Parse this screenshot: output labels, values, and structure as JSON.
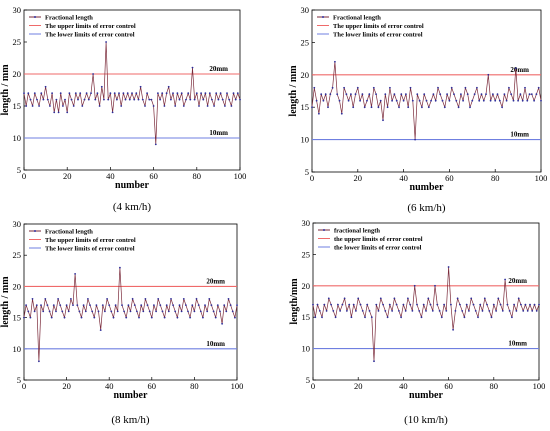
{
  "colors": {
    "series": "#7a2a3a",
    "marker": "#2f2f9a",
    "upper": "#ef6a6a",
    "lower": "#6f7fe0"
  },
  "chart_data": [
    {
      "type": "line",
      "caption": "(4 km/h)",
      "xlabel": "number",
      "ylabel": "length / mm",
      "xlim": [
        0,
        100
      ],
      "ylim": [
        5,
        30
      ],
      "xticks": [
        "0",
        "20",
        "40",
        "60",
        "80",
        "100"
      ],
      "yticks": [
        "5",
        "10",
        "15",
        "20",
        "25",
        "30"
      ],
      "legend": [
        "Fractional length",
        "The upper limits of error control",
        "The lower limits of error control"
      ],
      "upper": 20,
      "lower": 10,
      "upper_label": "20mm",
      "lower_label": "10mm",
      "series": [
        {
          "name": "Fractional length",
          "values": [
            17,
            15,
            17,
            16,
            15,
            17,
            16,
            15,
            17,
            16,
            18,
            16,
            15,
            17,
            14,
            16,
            14,
            17,
            15,
            16,
            14,
            17,
            16,
            15,
            17,
            16,
            17,
            15,
            16,
            17,
            16,
            17,
            20,
            16,
            17,
            15,
            18,
            16,
            25,
            16,
            17,
            14,
            17,
            16,
            17,
            15,
            17,
            16,
            17,
            16,
            17,
            16,
            17,
            16,
            18,
            16,
            15,
            17,
            16,
            16,
            15,
            9,
            17,
            16,
            17,
            15,
            17,
            18,
            16,
            17,
            15,
            17,
            16,
            17,
            15,
            16,
            17,
            16,
            21,
            16,
            17,
            15,
            17,
            16,
            17,
            15,
            17,
            16,
            15,
            17,
            16,
            17,
            16,
            15,
            17,
            16,
            15,
            17,
            16,
            17,
            16
          ]
        }
      ]
    },
    {
      "type": "line",
      "caption": "(6 km/h)",
      "xlabel": "number",
      "ylabel": "length / mm",
      "xlim": [
        0,
        100
      ],
      "ylim": [
        5,
        30
      ],
      "xticks": [
        "0",
        "20",
        "40",
        "60",
        "80",
        "100"
      ],
      "yticks": [
        "5",
        "10",
        "15",
        "20",
        "25",
        "30"
      ],
      "legend": [
        "Fractional length",
        "The upper limits of error control",
        "The lower limits of error control"
      ],
      "upper": 20,
      "lower": 10,
      "upper_label": "20mm",
      "lower_label": "10mm",
      "series": [
        {
          "name": "Fractional length",
          "values": [
            15,
            18,
            16,
            14,
            17,
            16,
            17,
            15,
            17,
            18,
            22,
            17,
            16,
            14,
            18,
            17,
            16,
            17,
            15,
            17,
            18,
            16,
            17,
            15,
            16,
            17,
            15,
            18,
            17,
            15,
            16,
            13,
            17,
            15,
            18,
            16,
            17,
            16,
            15,
            17,
            16,
            17,
            15,
            18,
            16,
            10,
            17,
            16,
            15,
            17,
            16,
            15,
            16,
            17,
            16,
            18,
            17,
            16,
            15,
            17,
            16,
            18,
            17,
            16,
            15,
            17,
            16,
            18,
            17,
            15,
            16,
            17,
            18,
            16,
            17,
            16,
            17,
            20,
            16,
            17,
            16,
            17,
            16,
            15,
            17,
            16,
            18,
            17,
            16,
            21,
            16,
            17,
            16,
            18,
            16,
            17,
            17,
            16,
            17,
            18,
            16
          ]
        }
      ]
    },
    {
      "type": "line",
      "caption": "(8 km/h)",
      "xlabel": "number",
      "ylabel": "length / mm",
      "xlim": [
        0,
        100
      ],
      "ylim": [
        5,
        30
      ],
      "xticks": [
        "0",
        "20",
        "40",
        "60",
        "80",
        "100"
      ],
      "yticks": [
        "5",
        "10",
        "15",
        "20",
        "25",
        "30"
      ],
      "legend": [
        "Fractional length",
        "The upper limits of error control",
        "The lower limits of error control"
      ],
      "upper": 20,
      "lower": 10,
      "upper_label": "20mm",
      "lower_label": "10mm",
      "series": [
        {
          "name": "Fractional length",
          "values": [
            15,
            17,
            16,
            15,
            18,
            16,
            17,
            8,
            17,
            16,
            18,
            17,
            16,
            15,
            17,
            16,
            18,
            17,
            16,
            15,
            17,
            16,
            18,
            17,
            22,
            17,
            16,
            15,
            17,
            16,
            18,
            17,
            16,
            15,
            17,
            16,
            13,
            17,
            16,
            18,
            17,
            16,
            15,
            17,
            16,
            23,
            17,
            16,
            15,
            17,
            16,
            18,
            17,
            16,
            15,
            17,
            16,
            18,
            17,
            16,
            15,
            17,
            16,
            18,
            17,
            16,
            15,
            17,
            16,
            18,
            17,
            16,
            15,
            17,
            16,
            18,
            17,
            16,
            15,
            17,
            16,
            18,
            17,
            16,
            15,
            17,
            16,
            18,
            17,
            16,
            15,
            17,
            16,
            14,
            17,
            16,
            18,
            17,
            16,
            15,
            17
          ]
        }
      ]
    },
    {
      "type": "line",
      "caption": "(10 km/h)",
      "xlabel": "number",
      "ylabel": "length/mm",
      "xlim": [
        0,
        100
      ],
      "ylim": [
        5,
        30
      ],
      "xticks": [
        "0",
        "20",
        "40",
        "60",
        "80",
        "100"
      ],
      "yticks": [
        "5",
        "10",
        "15",
        "20",
        "25",
        "30"
      ],
      "legend": [
        "fractional length",
        "the upper limits of error control",
        "the lower limits of error control"
      ],
      "upper": 20,
      "lower": 10,
      "upper_label": "20mm",
      "lower_label": "10mm",
      "series": [
        {
          "name": "fractional length",
          "values": [
            17,
            15,
            17,
            16,
            15,
            17,
            16,
            18,
            17,
            16,
            15,
            17,
            16,
            17,
            18,
            16,
            17,
            15,
            17,
            16,
            18,
            17,
            16,
            15,
            17,
            16,
            15,
            8,
            17,
            16,
            18,
            17,
            16,
            15,
            17,
            16,
            18,
            17,
            16,
            15,
            17,
            16,
            18,
            17,
            16,
            20,
            17,
            16,
            15,
            17,
            16,
            18,
            17,
            16,
            20,
            17,
            16,
            15,
            17,
            16,
            23,
            17,
            13,
            16,
            18,
            17,
            16,
            15,
            17,
            16,
            18,
            17,
            16,
            15,
            17,
            16,
            18,
            17,
            16,
            15,
            17,
            16,
            18,
            17,
            16,
            21,
            17,
            16,
            15,
            17,
            16,
            18,
            17,
            16,
            17,
            16,
            17,
            16,
            17,
            16,
            17
          ]
        }
      ]
    }
  ]
}
